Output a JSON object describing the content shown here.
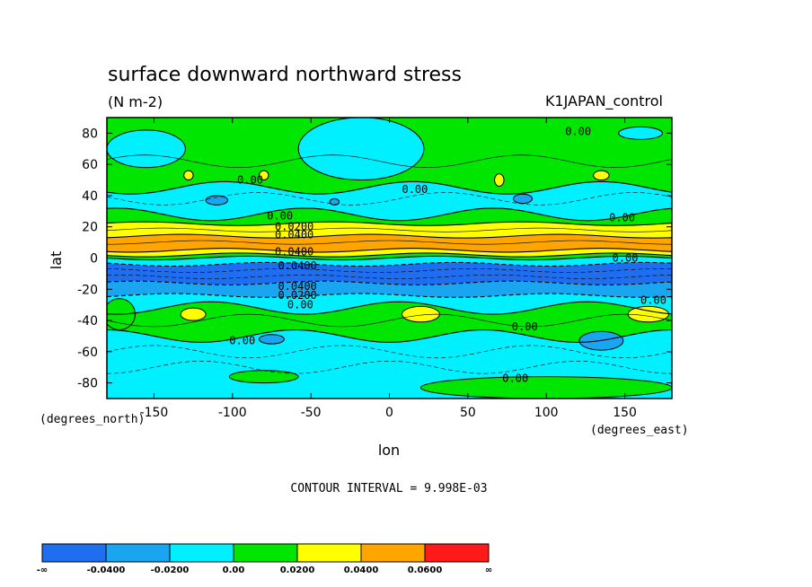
{
  "chart_data": {
    "type": "heatmap",
    "title": "surface downward northward stress",
    "units": "(N m-2)",
    "dataset": "K1JAPAN_control",
    "xlabel": "lon",
    "ylabel": "lat",
    "x_units": "(degrees_east)",
    "y_units": "(degrees_north)",
    "xlim": [
      -180,
      180
    ],
    "ylim": [
      -90,
      90
    ],
    "x_ticks": [
      -150,
      -100,
      -50,
      0,
      50,
      100,
      150
    ],
    "y_ticks": [
      80,
      60,
      40,
      20,
      0,
      -20,
      -40,
      -60,
      -80
    ],
    "contour_interval_text": "CONTOUR INTERVAL = 9.998E-03",
    "colorbar": {
      "labels": [
        "-∞",
        "-0.0400",
        "-0.0200",
        "0.00",
        "0.0200",
        "0.0400",
        "0.0600",
        "∞"
      ],
      "colors": [
        "#1f6ef0",
        "#1aa5f0",
        "#00f0ff",
        "#00e600",
        "#ffff00",
        "#ffa500",
        "#ff1a1a"
      ]
    },
    "bands": [
      {
        "lat_top": 90,
        "lat_bottom": 45,
        "color": "#00e600",
        "value_range": "0.00 to 0.0200"
      },
      {
        "lat_top": 45,
        "lat_bottom": 28,
        "color": "#00f0ff",
        "value_range": "-0.0200 to 0.00"
      },
      {
        "lat_top": 28,
        "lat_bottom": 22,
        "color": "#00e600",
        "value_range": "0.00 to 0.0200"
      },
      {
        "lat_top": 22,
        "lat_bottom": 14,
        "color": "#ffff00",
        "value_range": "0.0200 to 0.0400"
      },
      {
        "lat_top": 14,
        "lat_bottom": 5,
        "color": "#ffa500",
        "value_range": "0.0400 to 0.0600"
      },
      {
        "lat_top": 5,
        "lat_bottom": 2,
        "color": "#ffff00",
        "value_range": "0.0200 to 0.0400"
      },
      {
        "lat_top": 2,
        "lat_bottom": 0,
        "color": "#00e600",
        "value_range": "0.00 to 0.0200"
      },
      {
        "lat_top": 0,
        "lat_bottom": -4,
        "color": "#00f0ff",
        "value_range": "-0.0200 to 0.00"
      },
      {
        "lat_top": -4,
        "lat_bottom": -16,
        "color": "#1f6ef0",
        "value_range": "< -0.0400"
      },
      {
        "lat_top": -16,
        "lat_bottom": -24,
        "color": "#1aa5f0",
        "value_range": "-0.0400 to -0.0200"
      },
      {
        "lat_top": -24,
        "lat_bottom": -32,
        "color": "#00f0ff",
        "value_range": "-0.0200 to 0.00"
      },
      {
        "lat_top": -32,
        "lat_bottom": -50,
        "color": "#00e600",
        "value_range": "0.00 to 0.0200"
      },
      {
        "lat_top": -50,
        "lat_bottom": -90,
        "color": "#00f0ff",
        "value_range": "-0.0200 to 0.00"
      }
    ],
    "patches": [
      {
        "lon": -155,
        "lat": 70,
        "rx": 25,
        "ry": 12,
        "color": "#00f0ff"
      },
      {
        "lon": -18,
        "lat": 70,
        "rx": 40,
        "ry": 20,
        "color": "#00f0ff"
      },
      {
        "lon": 160,
        "lat": 80,
        "rx": 14,
        "ry": 4,
        "color": "#00f0ff"
      },
      {
        "lon": -128,
        "lat": 53,
        "rx": 3,
        "ry": 3,
        "color": "#ffff00"
      },
      {
        "lon": -80,
        "lat": 53,
        "rx": 3,
        "ry": 3,
        "color": "#ffff00"
      },
      {
        "lon": 70,
        "lat": 50,
        "rx": 3,
        "ry": 4,
        "color": "#ffff00"
      },
      {
        "lon": 135,
        "lat": 53,
        "rx": 5,
        "ry": 3,
        "color": "#ffff00"
      },
      {
        "lon": -110,
        "lat": 37,
        "rx": 7,
        "ry": 3,
        "color": "#1aa5f0"
      },
      {
        "lon": 85,
        "lat": 38,
        "rx": 6,
        "ry": 3,
        "color": "#1aa5f0"
      },
      {
        "lon": -35,
        "lat": 36,
        "rx": 3,
        "ry": 2,
        "color": "#1aa5f0"
      },
      {
        "lon": -172,
        "lat": -36,
        "rx": 10,
        "ry": 10,
        "color": "#00e600"
      },
      {
        "lon": -125,
        "lat": -36,
        "rx": 8,
        "ry": 4,
        "color": "#ffff00"
      },
      {
        "lon": 20,
        "lat": -36,
        "rx": 12,
        "ry": 5,
        "color": "#ffff00"
      },
      {
        "lon": 165,
        "lat": -36,
        "rx": 13,
        "ry": 5,
        "color": "#ffff00"
      },
      {
        "lon": -75,
        "lat": -52,
        "rx": 8,
        "ry": 3,
        "color": "#1aa5f0"
      },
      {
        "lon": 135,
        "lat": -53,
        "rx": 14,
        "ry": 6,
        "color": "#1aa5f0"
      },
      {
        "lon": -80,
        "lat": -76,
        "rx": 22,
        "ry": 4,
        "color": "#00e600"
      },
      {
        "lon": 100,
        "lat": -83,
        "rx": 80,
        "ry": 7,
        "color": "#00e600"
      }
    ],
    "contour_labels": [
      {
        "text": "0.00",
        "lon": 112,
        "lat": 81
      },
      {
        "text": "0.00",
        "lon": -97,
        "lat": 50
      },
      {
        "text": "0.00",
        "lon": 8,
        "lat": 44
      },
      {
        "text": "0.00",
        "lon": 140,
        "lat": 26
      },
      {
        "text": "0.00",
        "lon": -78,
        "lat": 27
      },
      {
        "text": "0.0200",
        "lon": -73,
        "lat": 20
      },
      {
        "text": "0.0400",
        "lon": -73,
        "lat": 15
      },
      {
        "text": "0.0400",
        "lon": -73,
        "lat": 4
      },
      {
        "text": "0.00",
        "lon": 142,
        "lat": 0
      },
      {
        "text": "0.0400",
        "lon": -71,
        "lat": -5
      },
      {
        "text": "0.0400",
        "lon": -71,
        "lat": -18
      },
      {
        "text": "0.0200",
        "lon": -71,
        "lat": -24
      },
      {
        "text": "0.00",
        "lon": -65,
        "lat": -30
      },
      {
        "text": "0.00",
        "lon": 160,
        "lat": -27
      },
      {
        "text": "0.00",
        "lon": 78,
        "lat": -44
      },
      {
        "text": "0.00",
        "lon": -102,
        "lat": -53
      },
      {
        "text": "0.00",
        "lon": 72,
        "lat": -77
      }
    ]
  }
}
